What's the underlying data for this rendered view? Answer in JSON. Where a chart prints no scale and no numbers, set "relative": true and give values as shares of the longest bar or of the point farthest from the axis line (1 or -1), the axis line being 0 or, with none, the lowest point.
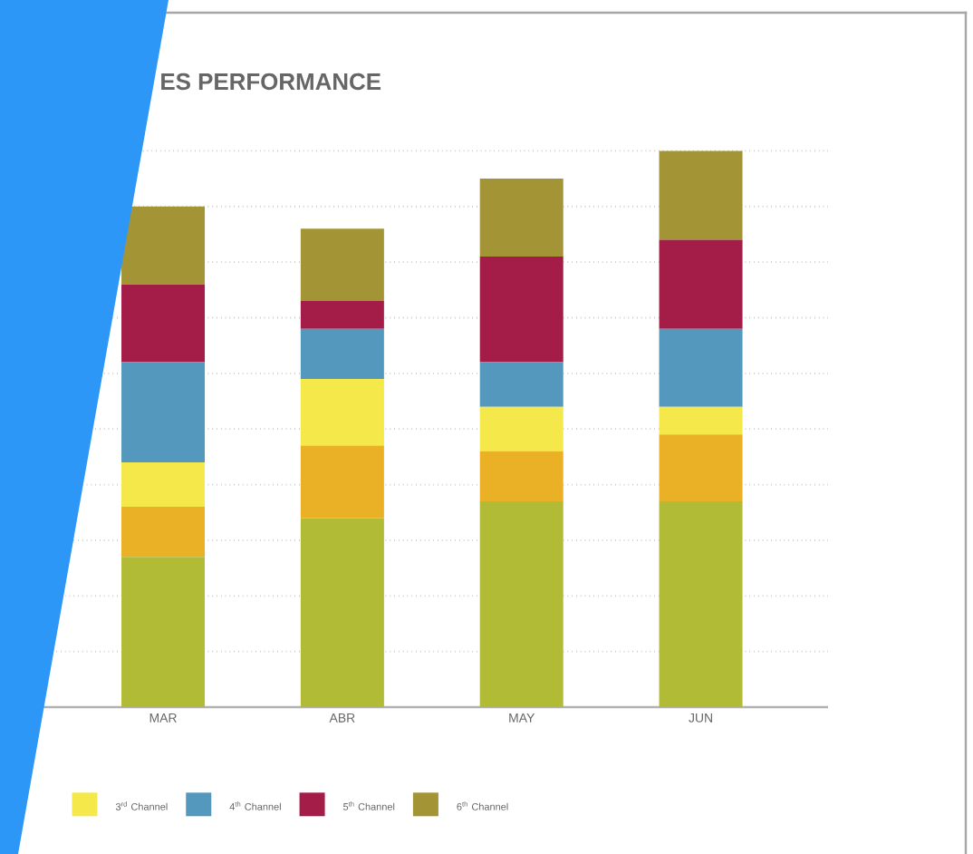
{
  "chart_data": {
    "type": "bar",
    "title": "ES PERFORMANCE",
    "stacked": true,
    "relative": true,
    "grid": "y",
    "legend": "bottom",
    "categories": [
      "MAR",
      "ABR",
      "MAY",
      "JUN"
    ],
    "series": [
      {
        "color": "#b2bb35",
        "values": [
          0.27,
          0.34,
          0.37,
          0.37
        ]
      },
      {
        "color": "#eab126",
        "values": [
          0.09,
          0.13,
          0.09,
          0.12
        ]
      },
      {
        "name": "3$^{rd}$ Channel",
        "color": "#f4e84a",
        "values": [
          0.08,
          0.12,
          0.08,
          0.05
        ]
      },
      {
        "name": "4$^{th}$ Channel",
        "color": "#5598bd",
        "values": [
          0.18,
          0.09,
          0.08,
          0.14
        ]
      },
      {
        "name": "5$^{th}$ Channel",
        "color": "#a31d48",
        "values": [
          0.14,
          0.05,
          0.19,
          0.16
        ]
      },
      {
        "name": "6$^{th}$ Channel",
        "color": "#a39435",
        "values": [
          0.14,
          0.13,
          0.14,
          0.16
        ]
      }
    ]
  }
}
